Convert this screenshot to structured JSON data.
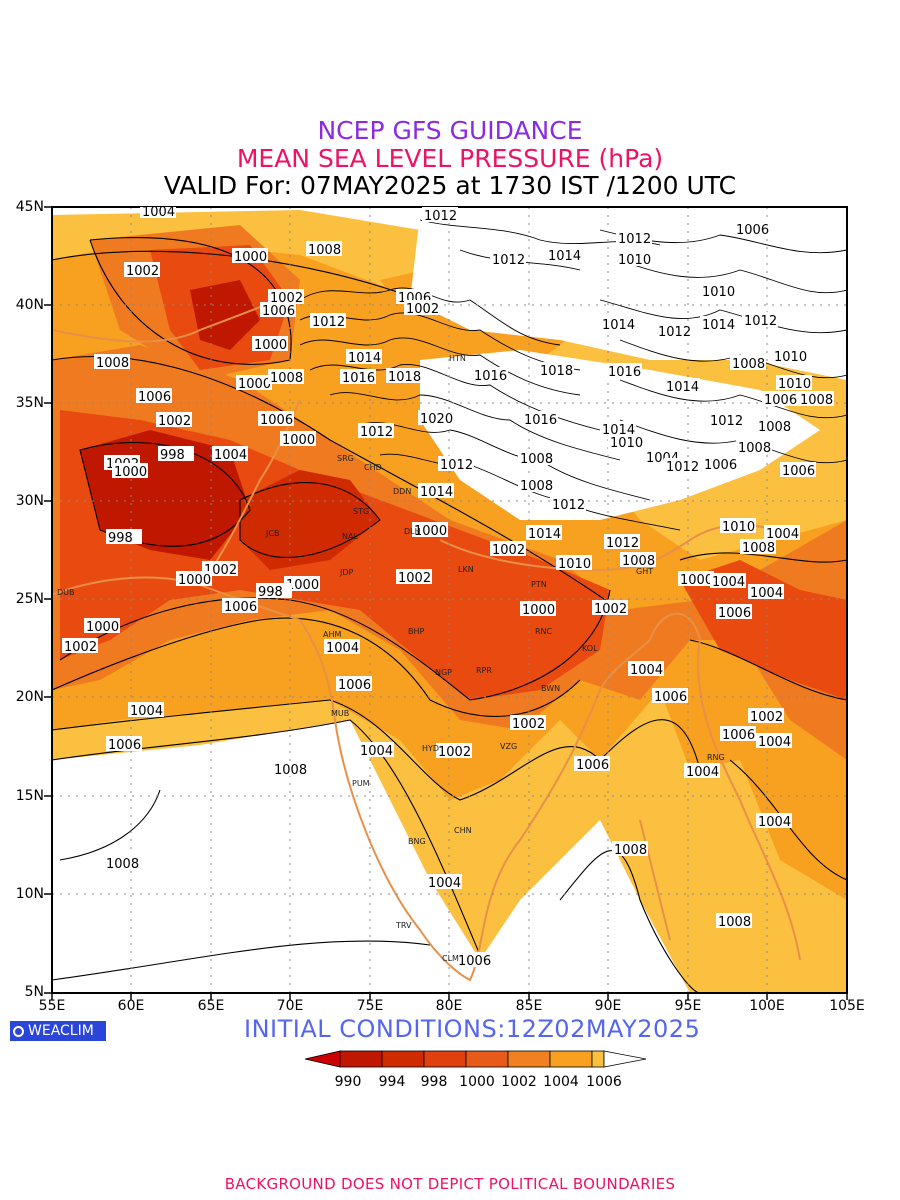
{
  "header": {
    "line1": "NCEP GFS GUIDANCE",
    "line2": "MEAN SEA LEVEL PRESSURE (hPa)",
    "line3": "VALID For: 07MAY2025 at 1730 IST /1200 UTC"
  },
  "axes": {
    "lat_labels": [
      "45N",
      "40N",
      "35N",
      "30N",
      "25N",
      "20N",
      "15N",
      "10N",
      "5N"
    ],
    "lon_labels": [
      "55E",
      "60E",
      "65E",
      "70E",
      "75E",
      "80E",
      "85E",
      "90E",
      "95E",
      "100E",
      "105E"
    ]
  },
  "brand": "WEACLIM",
  "init_conditions": "INITIAL CONDITIONS:12Z02MAY2025",
  "colorbar": {
    "labels": [
      "990",
      "994",
      "998",
      "1000",
      "1002",
      "1004",
      "1006"
    ],
    "colors": [
      "#cc0000",
      "#c01800",
      "#d02a00",
      "#e84a10",
      "#f07a20",
      "#f8a020",
      "#fbc040",
      "#ffffff"
    ]
  },
  "contour_labels": [
    "1004",
    "1012",
    "1010",
    "1006",
    "1002",
    "1000",
    "1008",
    "1014",
    "1016",
    "1018",
    "998",
    "1020"
  ],
  "city_labels": [
    "HTN",
    "SRG",
    "CHD",
    "DDN",
    "STG",
    "NAL",
    "JCB",
    "JDP",
    "DLH",
    "LKN",
    "PTN",
    "RNC",
    "KOL",
    "BHP",
    "AHM",
    "DUB",
    "NGP",
    "RPR",
    "BWN",
    "MUB",
    "HYD",
    "VZG",
    "PUM",
    "CHN",
    "BNG",
    "TRV",
    "CLM",
    "GHT",
    "RNG"
  ],
  "footer": "BACKGROUND DOES NOT DEPICT POLITICAL BOUNDARIES",
  "palette": {
    "deep_red": "#c01800",
    "red_orange": "#e84a10",
    "orange": "#f07a20",
    "amber": "#f8a020",
    "light_amber": "#fbc040",
    "boundary": "#e89048",
    "title_purple": "#8a2be2",
    "title_magenta": "#ee1166",
    "init_blue": "#5566ee"
  }
}
